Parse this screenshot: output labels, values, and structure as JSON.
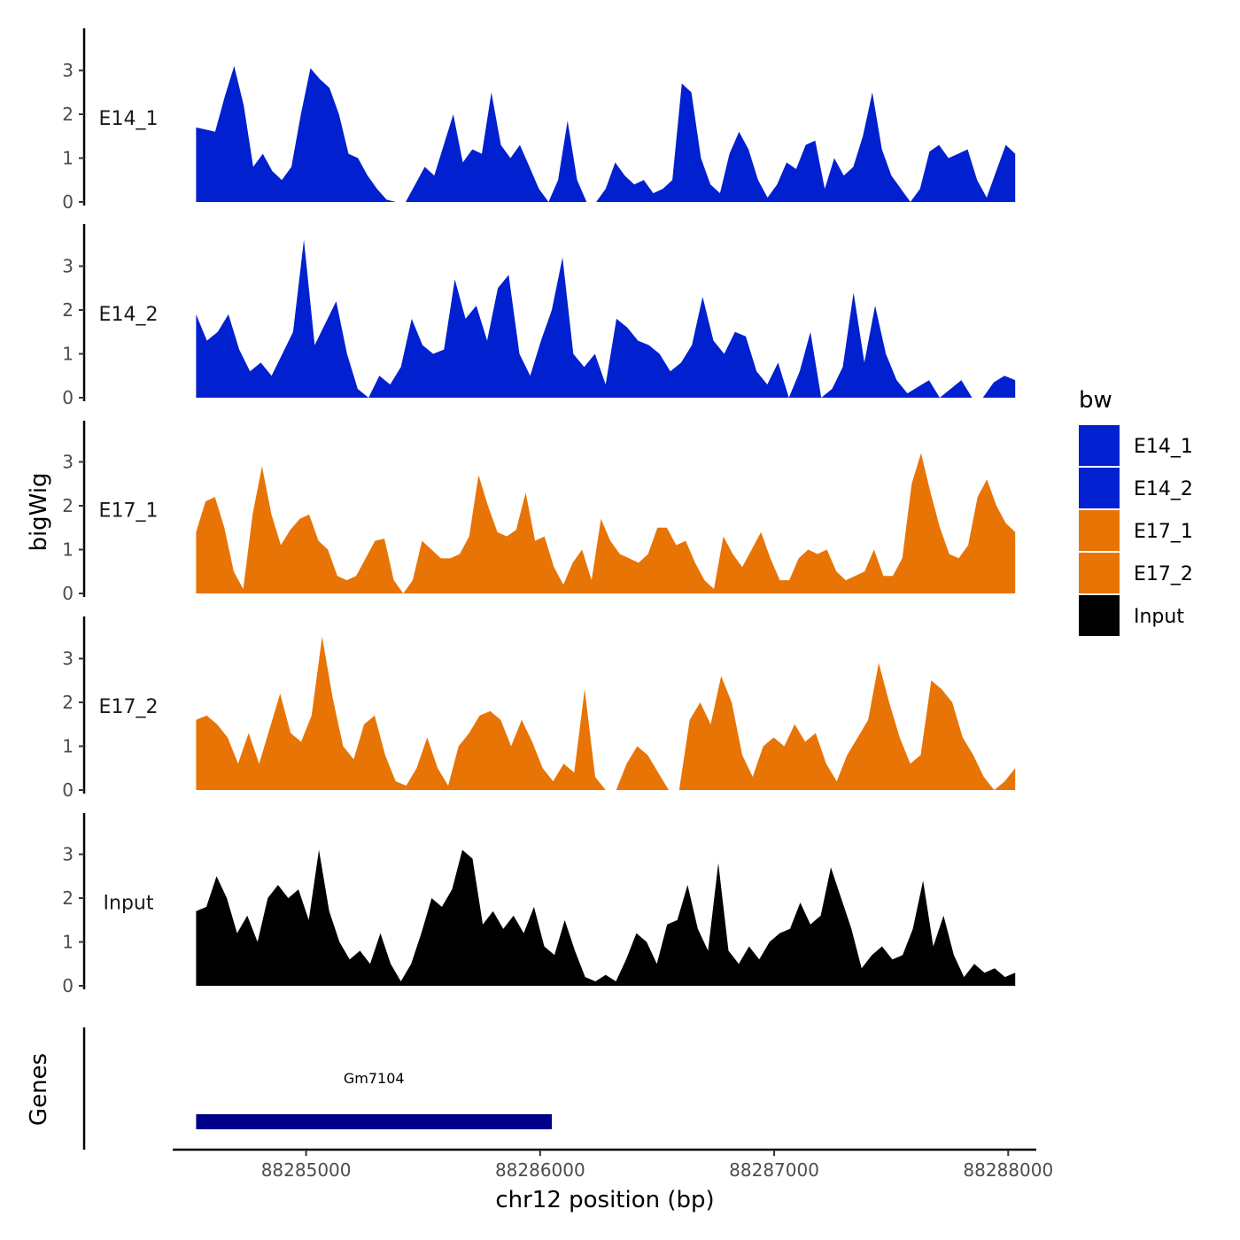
{
  "chart_data": {
    "type": "area",
    "title": "",
    "xlabel": "chr12 position (bp)",
    "ylabel_tracks": "bigWig",
    "ylabel_genes": "Genes",
    "xlim": [
      88284430,
      88288120
    ],
    "ylim": [
      0,
      4
    ],
    "x_ticks": [
      88285000,
      88286000,
      88287000,
      88288000
    ],
    "x_tick_labels": [
      "88285000",
      "88286000",
      "88287000",
      "88288000"
    ],
    "y_ticks": [
      0,
      1,
      2,
      3
    ],
    "y_tick_labels": [
      "0",
      "1",
      "2",
      "3"
    ],
    "x_start": 88284530,
    "x_end": 88288030,
    "legend": {
      "title": "bw",
      "position": "right",
      "entries": [
        {
          "label": "E14_1",
          "color": "#0120D0"
        },
        {
          "label": "E14_2",
          "color": "#0120D0"
        },
        {
          "label": "E17_1",
          "color": "#E87405"
        },
        {
          "label": "E17_2",
          "color": "#E87405"
        },
        {
          "label": "Input",
          "color": "#000000"
        }
      ]
    },
    "series": [
      {
        "name": "E14_1",
        "color": "#0120D0",
        "values": [
          1.7,
          1.65,
          1.6,
          2.4,
          3.1,
          2.2,
          0.8,
          1.1,
          0.7,
          0.5,
          0.8,
          2.0,
          3.05,
          2.8,
          2.6,
          2.0,
          1.1,
          1.0,
          0.6,
          0.3,
          0.05,
          0,
          0,
          0.4,
          0.8,
          0.6,
          1.3,
          2.0,
          0.9,
          1.2,
          1.1,
          2.5,
          1.3,
          1.0,
          1.3,
          0.8,
          0.3,
          0,
          0.5,
          1.85,
          0.5,
          0,
          0,
          0.3,
          0.9,
          0.6,
          0.4,
          0.5,
          0.2,
          0.3,
          0.5,
          2.7,
          2.5,
          1.0,
          0.4,
          0.2,
          1.1,
          1.6,
          1.2,
          0.5,
          0.1,
          0.4,
          0.9,
          0.75,
          1.3,
          1.4,
          0.3,
          1.0,
          0.6,
          0.8,
          1.5,
          2.5,
          1.2,
          0.6,
          0.3,
          0,
          0.3,
          1.15,
          1.3,
          1.0,
          1.1,
          1.2,
          0.5,
          0.1,
          0.7,
          1.3,
          1.1
        ]
      },
      {
        "name": "E14_2",
        "color": "#0120D0",
        "values": [
          1.9,
          1.3,
          1.5,
          1.9,
          1.1,
          0.6,
          0.8,
          0.5,
          1.0,
          1.5,
          3.6,
          1.2,
          1.7,
          2.2,
          1.0,
          0.2,
          0,
          0.5,
          0.3,
          0.7,
          1.8,
          1.2,
          1.0,
          1.1,
          2.7,
          1.8,
          2.1,
          1.3,
          2.5,
          2.8,
          1.0,
          0.5,
          1.3,
          2.0,
          3.2,
          1.0,
          0.7,
          1.0,
          0.3,
          1.8,
          1.6,
          1.3,
          1.2,
          1.0,
          0.6,
          0.8,
          1.2,
          2.3,
          1.3,
          1.0,
          1.5,
          1.4,
          0.6,
          0.3,
          0.8,
          0,
          0.6,
          1.5,
          0,
          0.2,
          0.7,
          2.4,
          0.8,
          2.1,
          1.0,
          0.4,
          0.1,
          0.25,
          0.4,
          0,
          0.2,
          0.4,
          0,
          0,
          0.35,
          0.5,
          0.4
        ]
      },
      {
        "name": "E17_1",
        "color": "#E87405",
        "values": [
          1.4,
          2.1,
          2.2,
          1.5,
          0.5,
          0.1,
          1.8,
          2.9,
          1.8,
          1.1,
          1.45,
          1.7,
          1.8,
          1.2,
          1.0,
          0.4,
          0.3,
          0.4,
          0.8,
          1.2,
          1.25,
          0.3,
          0,
          0.3,
          1.2,
          1.0,
          0.8,
          0.8,
          0.9,
          1.3,
          2.7,
          2.0,
          1.4,
          1.3,
          1.45,
          2.3,
          1.2,
          1.3,
          0.6,
          0.2,
          0.7,
          1.0,
          0.3,
          1.7,
          1.2,
          0.9,
          0.8,
          0.7,
          0.9,
          1.5,
          1.5,
          1.1,
          1.2,
          0.7,
          0.3,
          0.1,
          1.3,
          0.9,
          0.6,
          1.0,
          1.4,
          0.8,
          0.3,
          0.3,
          0.8,
          1.0,
          0.9,
          1.0,
          0.5,
          0.3,
          0.4,
          0.5,
          1.0,
          0.4,
          0.4,
          0.8,
          2.5,
          3.2,
          2.3,
          1.5,
          0.9,
          0.8,
          1.1,
          2.2,
          2.6,
          2.0,
          1.6,
          1.4
        ]
      },
      {
        "name": "E17_2",
        "color": "#E87405",
        "values": [
          1.6,
          1.7,
          1.5,
          1.2,
          0.6,
          1.3,
          0.6,
          1.4,
          2.2,
          1.3,
          1.1,
          1.7,
          3.5,
          2.1,
          1.0,
          0.7,
          1.5,
          1.7,
          0.8,
          0.2,
          0.1,
          0.5,
          1.2,
          0.5,
          0.1,
          1.0,
          1.3,
          1.7,
          1.8,
          1.6,
          1.0,
          1.6,
          1.1,
          0.5,
          0.2,
          0.6,
          0.4,
          2.3,
          0.3,
          0,
          0,
          0.6,
          1.0,
          0.8,
          0.4,
          0,
          0,
          1.6,
          2.0,
          1.5,
          2.6,
          2.0,
          0.8,
          0.3,
          1.0,
          1.2,
          1.0,
          1.5,
          1.1,
          1.3,
          0.6,
          0.2,
          0.8,
          1.2,
          1.6,
          2.9,
          2.0,
          1.2,
          0.6,
          0.8,
          2.5,
          2.3,
          2.0,
          1.2,
          0.8,
          0.3,
          0,
          0.2,
          0.5
        ]
      },
      {
        "name": "Input",
        "color": "#000000",
        "values": [
          1.7,
          1.8,
          2.5,
          2.0,
          1.2,
          1.6,
          1.0,
          2.0,
          2.3,
          2.0,
          2.2,
          1.5,
          3.1,
          1.7,
          1.0,
          0.6,
          0.8,
          0.5,
          1.2,
          0.5,
          0.1,
          0.5,
          1.2,
          2.0,
          1.8,
          2.2,
          3.1,
          2.9,
          1.4,
          1.7,
          1.3,
          1.6,
          1.2,
          1.8,
          0.9,
          0.7,
          1.5,
          0.8,
          0.2,
          0.1,
          0.25,
          0.1,
          0.6,
          1.2,
          1.0,
          0.5,
          1.4,
          1.5,
          2.3,
          1.3,
          0.8,
          2.8,
          0.8,
          0.5,
          0.9,
          0.6,
          1.0,
          1.2,
          1.3,
          1.9,
          1.4,
          1.6,
          2.7,
          2.0,
          1.3,
          0.4,
          0.7,
          0.9,
          0.6,
          0.7,
          1.3,
          2.4,
          0.9,
          1.6,
          0.7,
          0.2,
          0.5,
          0.3,
          0.4,
          0.2,
          0.3
        ]
      }
    ],
    "genes": [
      {
        "name": "Gm7104",
        "start": 88284530,
        "end": 88286050,
        "color": "#00008B"
      }
    ]
  }
}
